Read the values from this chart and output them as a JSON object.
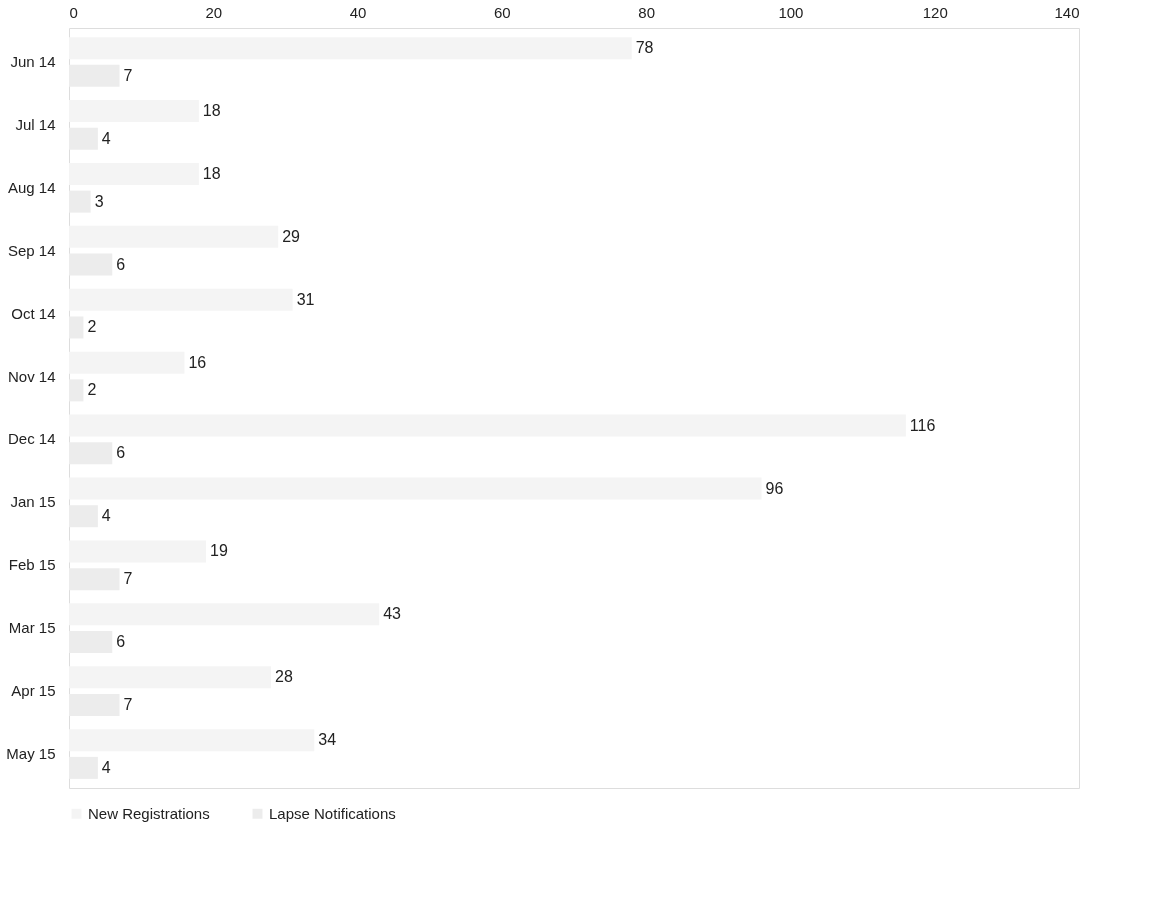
{
  "chart_data": {
    "type": "bar",
    "orientation": "horizontal",
    "categories": [
      "Jun 14",
      "Jul 14",
      "Aug 14",
      "Sep 14",
      "Oct 14",
      "Nov 14",
      "Dec 14",
      "Jan 15",
      "Feb 15",
      "Mar 15",
      "Apr 15",
      "May 15"
    ],
    "series": [
      {
        "name": "New Registrations",
        "color": "#f4f4f4",
        "values": [
          78,
          18,
          18,
          29,
          31,
          16,
          116,
          96,
          19,
          43,
          28,
          34
        ]
      },
      {
        "name": "Lapse Notifications",
        "color": "#ececec",
        "values": [
          7,
          4,
          3,
          6,
          2,
          2,
          6,
          4,
          7,
          6,
          7,
          4
        ]
      }
    ],
    "xlim": [
      0,
      140
    ],
    "xticks": [
      0,
      20,
      40,
      60,
      80,
      100,
      120,
      140
    ],
    "data_labels": true,
    "grid": false,
    "legend": "bottom"
  }
}
